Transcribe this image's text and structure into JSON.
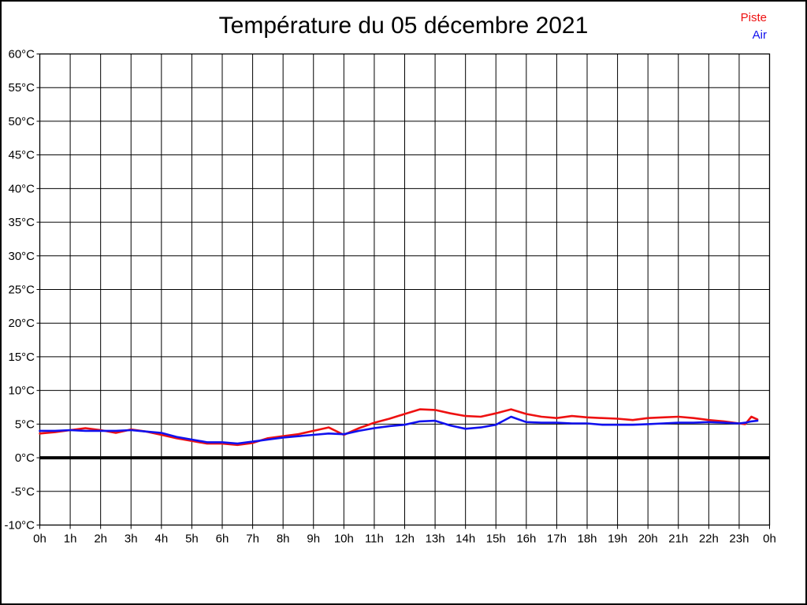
{
  "title": "Température du 05 décembre 2021",
  "legend": [
    {
      "label": "Piste",
      "color": "#ee1111"
    },
    {
      "label": "Air",
      "color": "#1111ee"
    }
  ],
  "chart_data": {
    "type": "line",
    "title": "Température du 05 décembre 2021",
    "xlabel": "",
    "ylabel": "",
    "x_unit": "hours",
    "xlim": [
      0,
      24
    ],
    "ylim": [
      -10,
      60
    ],
    "y_tick_step": 5,
    "y_tick_suffix": "°C",
    "y_ticks": [
      60,
      55,
      50,
      45,
      40,
      35,
      30,
      25,
      20,
      15,
      10,
      5,
      0,
      -5,
      -10
    ],
    "x_tick_labels": [
      "0h",
      "1h",
      "2h",
      "3h",
      "4h",
      "5h",
      "6h",
      "7h",
      "8h",
      "9h",
      "10h",
      "11h",
      "12h",
      "13h",
      "14h",
      "15h",
      "16h",
      "17h",
      "18h",
      "19h",
      "20h",
      "21h",
      "22h",
      "23h",
      "0h"
    ],
    "grid": true,
    "zero_line": true,
    "legend_position": "top-right",
    "x": [
      0,
      0.5,
      1,
      1.5,
      2,
      2.5,
      3,
      3.5,
      4,
      4.5,
      5,
      5.5,
      6,
      6.5,
      7,
      7.5,
      8,
      8.5,
      9,
      9.5,
      10,
      10.5,
      11,
      11.5,
      12,
      12.5,
      13,
      13.5,
      14,
      14.5,
      15,
      15.5,
      16,
      16.5,
      17,
      17.5,
      18,
      18.5,
      19,
      19.5,
      20,
      20.5,
      21,
      21.5,
      22,
      22.5,
      23,
      23.2,
      23.4,
      23.6
    ],
    "series": [
      {
        "name": "Piste",
        "color": "#ee1111",
        "values": [
          3.6,
          3.8,
          4.1,
          4.4,
          4.1,
          3.7,
          4.2,
          3.9,
          3.4,
          2.9,
          2.5,
          2.1,
          2.1,
          1.9,
          2.2,
          2.9,
          3.2,
          3.5,
          4.0,
          4.5,
          3.4,
          4.4,
          5.2,
          5.8,
          6.5,
          7.2,
          7.1,
          6.6,
          6.2,
          6.1,
          6.6,
          7.2,
          6.5,
          6.1,
          5.9,
          6.2,
          6.0,
          5.9,
          5.8,
          5.6,
          5.9,
          6.0,
          6.1,
          5.9,
          5.6,
          5.4,
          5.1,
          5.0,
          6.1,
          5.7
        ]
      },
      {
        "name": "Air",
        "color": "#1111ee",
        "values": [
          4.0,
          4.0,
          4.1,
          4.0,
          4.0,
          4.0,
          4.1,
          3.9,
          3.7,
          3.1,
          2.7,
          2.3,
          2.3,
          2.1,
          2.4,
          2.7,
          3.0,
          3.2,
          3.4,
          3.6,
          3.5,
          4.0,
          4.4,
          4.7,
          4.9,
          5.4,
          5.5,
          4.8,
          4.3,
          4.5,
          4.9,
          6.1,
          5.3,
          5.2,
          5.2,
          5.1,
          5.1,
          4.9,
          4.9,
          4.9,
          5.0,
          5.1,
          5.2,
          5.2,
          5.3,
          5.2,
          5.1,
          5.2,
          5.4,
          5.5
        ]
      }
    ]
  },
  "colors": {
    "background": "#ffffff",
    "grid": "#000000",
    "plot_border": "#000000",
    "zero_line": "#000000",
    "text": "#000000"
  }
}
